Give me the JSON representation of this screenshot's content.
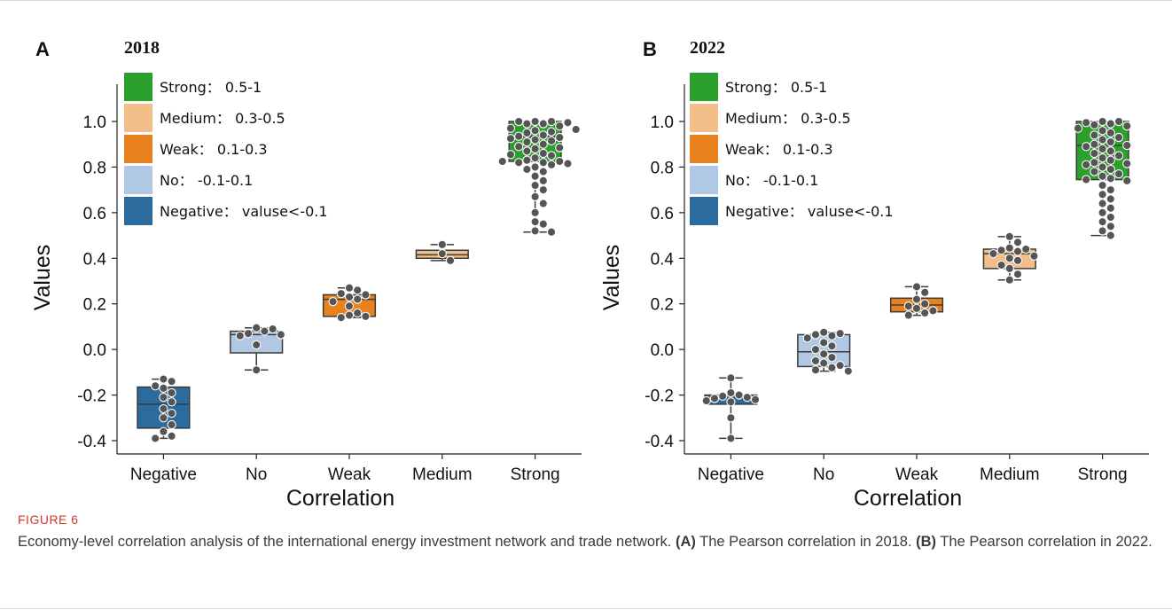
{
  "chart_data": [
    {
      "panel_label": "A",
      "title": "2018",
      "type": "box",
      "xlabel": "Correlation",
      "ylabel": "Values",
      "ylim": [
        -0.45,
        1.07
      ],
      "yticks": [
        -0.4,
        -0.2,
        0.0,
        0.2,
        0.4,
        0.6,
        0.8,
        1.0
      ],
      "ytick_labels": [
        "-0.4",
        "-0.2",
        "0.0",
        "0.2",
        "0.4",
        "0.6",
        "0.8",
        "1.0"
      ],
      "categories": [
        "Negative",
        "No",
        "Weak",
        "Medium",
        "Strong"
      ],
      "legend_position": "top-left",
      "legend": [
        {
          "label": "Strong：  0.5-1",
          "color": "#2ca02c"
        },
        {
          "label": "Medium：  0.3-0.5",
          "color": "#f2be8a"
        },
        {
          "label": "Weak：  0.1-0.3",
          "color": "#e8821e"
        },
        {
          "label": "No：  -0.1-0.1",
          "color": "#b1c8e4"
        },
        {
          "label": "Negative：  valuse<-0.1",
          "color": "#2b6b9e"
        }
      ],
      "boxes": [
        {
          "category": "Negative",
          "color": "#2b6b9e",
          "min": -0.39,
          "q1": -0.345,
          "median": -0.24,
          "q3": -0.165,
          "max": -0.13,
          "points": [
            -0.13,
            -0.14,
            -0.16,
            -0.17,
            -0.19,
            -0.21,
            -0.23,
            -0.26,
            -0.28,
            -0.3,
            -0.33,
            -0.36,
            -0.38,
            -0.39
          ]
        },
        {
          "category": "No",
          "color": "#b1c8e4",
          "min": -0.09,
          "q1": -0.015,
          "median": 0.065,
          "q3": 0.08,
          "max": 0.095,
          "points": [
            0.095,
            0.09,
            0.08,
            0.07,
            0.065,
            0.06,
            0.02,
            -0.09
          ]
        },
        {
          "category": "Weak",
          "color": "#e8821e",
          "min": 0.14,
          "q1": 0.145,
          "median": 0.22,
          "q3": 0.24,
          "max": 0.27,
          "points": [
            0.27,
            0.26,
            0.245,
            0.24,
            0.23,
            0.22,
            0.21,
            0.19,
            0.16,
            0.15,
            0.145,
            0.14
          ]
        },
        {
          "category": "Medium",
          "color": "#f2be8a",
          "min": 0.39,
          "q1": 0.4,
          "median": 0.415,
          "q3": 0.435,
          "max": 0.46,
          "points": [
            0.46,
            0.42,
            0.39
          ]
        },
        {
          "category": "Strong",
          "color": "#2ca02c",
          "min": 0.515,
          "q1": 0.825,
          "median": 0.935,
          "q3": 1.0,
          "max": 1.0,
          "points": [
            1.0,
            1.0,
            1.0,
            0.995,
            0.99,
            0.99,
            0.98,
            0.97,
            0.965,
            0.96,
            0.955,
            0.95,
            0.94,
            0.935,
            0.93,
            0.925,
            0.92,
            0.915,
            0.91,
            0.9,
            0.89,
            0.885,
            0.88,
            0.87,
            0.86,
            0.855,
            0.85,
            0.84,
            0.83,
            0.825,
            0.825,
            0.82,
            0.82,
            0.815,
            0.81,
            0.8,
            0.79,
            0.78,
            0.76,
            0.74,
            0.72,
            0.7,
            0.67,
            0.64,
            0.6,
            0.56,
            0.55,
            0.52,
            0.515
          ]
        }
      ]
    },
    {
      "panel_label": "B",
      "title": "2022",
      "type": "box",
      "xlabel": "Correlation",
      "ylabel": "Values",
      "ylim": [
        -0.45,
        1.07
      ],
      "yticks": [
        -0.4,
        -0.2,
        0.0,
        0.2,
        0.4,
        0.6,
        0.8,
        1.0
      ],
      "ytick_labels": [
        "-0.4",
        "-0.2",
        "0.0",
        "0.2",
        "0.4",
        "0.6",
        "0.8",
        "1.0"
      ],
      "categories": [
        "Negative",
        "No",
        "Weak",
        "Medium",
        "Strong"
      ],
      "legend_position": "top-left",
      "legend": [
        {
          "label": "Strong：  0.5-1",
          "color": "#2ca02c"
        },
        {
          "label": "Medium：  0.3-0.5",
          "color": "#f2be8a"
        },
        {
          "label": "Weak：  0.1-0.3",
          "color": "#e8821e"
        },
        {
          "label": "No：  -0.1-0.1",
          "color": "#b1c8e4"
        },
        {
          "label": "Negative：  valuse<-0.1",
          "color": "#2b6b9e"
        }
      ],
      "boxes": [
        {
          "category": "Negative",
          "color": "#2b6b9e",
          "min": -0.39,
          "q1": -0.24,
          "median": -0.215,
          "q3": -0.2,
          "max": -0.125,
          "points": [
            -0.125,
            -0.19,
            -0.2,
            -0.205,
            -0.21,
            -0.215,
            -0.22,
            -0.225,
            -0.23,
            -0.3,
            -0.39
          ]
        },
        {
          "category": "No",
          "color": "#b1c8e4",
          "min": -0.095,
          "q1": -0.075,
          "median": -0.01,
          "q3": 0.065,
          "max": 0.075,
          "points": [
            0.075,
            0.07,
            0.065,
            0.06,
            0.05,
            0.03,
            0.015,
            0.0,
            -0.02,
            -0.035,
            -0.05,
            -0.06,
            -0.07,
            -0.08,
            -0.09,
            -0.095
          ]
        },
        {
          "category": "Weak",
          "color": "#e8821e",
          "min": 0.15,
          "q1": 0.165,
          "median": 0.195,
          "q3": 0.225,
          "max": 0.275,
          "points": [
            0.275,
            0.25,
            0.22,
            0.2,
            0.19,
            0.18,
            0.17,
            0.16,
            0.15
          ]
        },
        {
          "category": "Medium",
          "color": "#f2be8a",
          "min": 0.305,
          "q1": 0.355,
          "median": 0.42,
          "q3": 0.44,
          "max": 0.495,
          "points": [
            0.495,
            0.47,
            0.445,
            0.44,
            0.435,
            0.43,
            0.42,
            0.41,
            0.4,
            0.39,
            0.37,
            0.355,
            0.33,
            0.305
          ]
        },
        {
          "category": "Strong",
          "color": "#2ca02c",
          "min": 0.5,
          "q1": 0.745,
          "median": 0.895,
          "q3": 1.0,
          "max": 1.0,
          "points": [
            1.0,
            1.0,
            0.995,
            0.99,
            0.985,
            0.98,
            0.97,
            0.96,
            0.95,
            0.94,
            0.93,
            0.92,
            0.91,
            0.9,
            0.895,
            0.89,
            0.88,
            0.87,
            0.86,
            0.85,
            0.84,
            0.83,
            0.82,
            0.815,
            0.81,
            0.8,
            0.79,
            0.78,
            0.77,
            0.76,
            0.75,
            0.745,
            0.74,
            0.72,
            0.7,
            0.68,
            0.66,
            0.64,
            0.62,
            0.6,
            0.58,
            0.56,
            0.54,
            0.52,
            0.5
          ]
        }
      ]
    }
  ],
  "caption": {
    "label": "FIGURE 6",
    "text_main": "Economy-level correlation analysis of the international energy investment network and trade network. ",
    "a_ref": "(A)",
    "a_text": " The Pearson correlation in 2018. ",
    "b_ref": "(B)",
    "b_text": " The Pearson correlation in 2022."
  }
}
